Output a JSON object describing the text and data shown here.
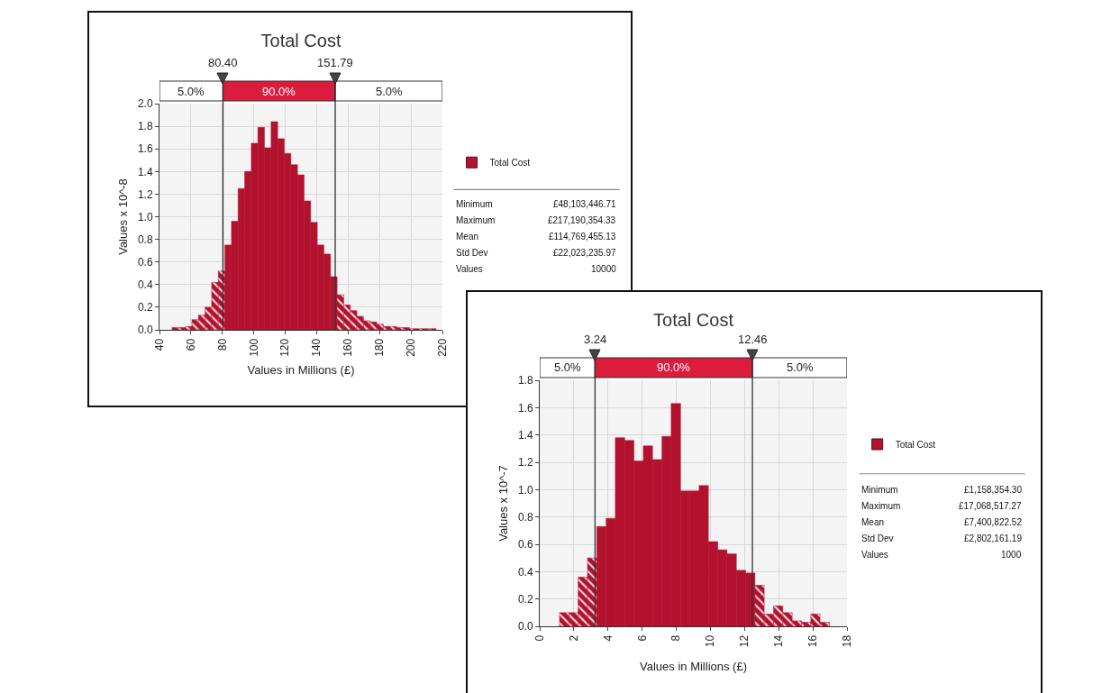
{
  "chart_data": [
    {
      "type": "histogram",
      "title": "Total Cost",
      "xlabel": "Values in Millions (£)",
      "ylabel": "Values x 10^-8",
      "series": [
        {
          "name": "Total Cost",
          "color": "#b3122e",
          "values": [
            0.02,
            0.02,
            0.03,
            0.09,
            0.13,
            0.2,
            0.42,
            0.52,
            0.75,
            0.96,
            1.25,
            1.4,
            1.65,
            1.79,
            1.61,
            1.84,
            1.69,
            1.56,
            1.46,
            1.37,
            1.14,
            0.95,
            0.75,
            0.67,
            0.47,
            0.31,
            0.22,
            0.17,
            0.12,
            0.08,
            0.07,
            0.05,
            0.03,
            0.03,
            0.02,
            0.02,
            0.01,
            0.01,
            0.01,
            0.01
          ]
        }
      ],
      "bins": [
        48,
        52.2,
        56.4,
        60.6,
        64.8,
        69,
        73.2,
        77.4,
        81.6,
        85.8,
        90,
        94.2,
        98.4,
        102.6,
        106.8,
        111,
        115.2,
        119.4,
        123.6,
        127.8,
        132,
        136.2,
        140.4,
        144.6,
        148.8,
        153,
        157.2,
        161.4,
        165.6,
        169.8,
        174,
        178.2,
        182.4,
        186.6,
        190.8,
        195,
        199.2,
        203.4,
        207.6,
        211.8,
        216
      ],
      "xlim": [
        40,
        220
      ],
      "xticks": [
        40,
        60,
        80,
        100,
        120,
        140,
        160,
        180,
        200,
        220
      ],
      "ylim": [
        0,
        2.0
      ],
      "yticks": [
        {
          "value": 0,
          "label": "0.0"
        },
        {
          "value": 0.2,
          "label": "0.2"
        },
        {
          "value": 0.4,
          "label": "0.4"
        },
        {
          "value": 0.6,
          "label": "0.6"
        },
        {
          "value": 0.8,
          "label": "0.8"
        },
        {
          "value": 1,
          "label": "1.0"
        },
        {
          "value": 1.2,
          "label": "1.2"
        },
        {
          "value": 1.4,
          "label": "1.4"
        },
        {
          "value": 1.6,
          "label": "1.6"
        },
        {
          "value": 1.8,
          "label": "1.8"
        },
        {
          "value": 2,
          "label": "2.0"
        }
      ],
      "ref_lines": [
        {
          "axis": "x",
          "value": 80.4,
          "label": "80.40",
          "color": "#333333"
        },
        {
          "axis": "x",
          "value": 151.79,
          "label": "151.79",
          "color": "#333333"
        }
      ],
      "annotations": [
        "5.0%",
        "90.0%",
        "5.0%",
        "Minimum",
        "£48,103,446.71",
        "Maximum",
        "£217,190,354.33",
        "Mean",
        "£114,769,455.13",
        "Std Dev",
        "£22,023,235.97",
        "Values",
        "10000"
      ],
      "grid": true,
      "legend": "right"
    },
    {
      "type": "histogram",
      "title": "Total Cost",
      "xlabel": "Values in Millions (£)",
      "ylabel": "Values x 10^-7",
      "series": [
        {
          "name": "Total Cost",
          "color": "#b3122e",
          "values": [
            0.1,
            0.1,
            0.36,
            0.5,
            0.73,
            0.79,
            1.38,
            1.36,
            1.21,
            1.32,
            1.22,
            1.39,
            1.63,
            0.99,
            0.99,
            1.03,
            0.62,
            0.56,
            0.53,
            0.41,
            0.39,
            0.3,
            0.09,
            0.15,
            0.1,
            0.04,
            0.03,
            0.09,
            0.03
          ]
        }
      ],
      "bins": [
        1.16,
        1.71,
        2.25,
        2.8,
        3.34,
        3.89,
        4.43,
        4.98,
        5.52,
        6.07,
        6.61,
        7.16,
        7.7,
        8.25,
        8.79,
        9.34,
        9.88,
        10.43,
        10.97,
        11.52,
        12.06,
        12.61,
        13.15,
        13.7,
        14.24,
        14.79,
        15.33,
        15.88,
        16.42,
        16.97
      ],
      "xlim": [
        0,
        18
      ],
      "xticks": [
        0,
        2,
        4,
        6,
        8,
        10,
        12,
        14,
        16,
        18
      ],
      "ylim": [
        0,
        1.8
      ],
      "yticks": [
        {
          "value": 0,
          "label": "0.0"
        },
        {
          "value": 0.2,
          "label": "0.2"
        },
        {
          "value": 0.4,
          "label": "0.4"
        },
        {
          "value": 0.6,
          "label": "0.6"
        },
        {
          "value": 0.8,
          "label": "0.8"
        },
        {
          "value": 1,
          "label": "1.0"
        },
        {
          "value": 1.2,
          "label": "1.2"
        },
        {
          "value": 1.4,
          "label": "1.4"
        },
        {
          "value": 1.6,
          "label": "1.6"
        },
        {
          "value": 1.8,
          "label": "1.8"
        }
      ],
      "ref_lines": [
        {
          "axis": "x",
          "value": 3.24,
          "label": "3.24",
          "color": "#333333"
        },
        {
          "axis": "x",
          "value": 12.46,
          "label": "12.46",
          "color": "#333333"
        }
      ],
      "annotations": [
        "5.0%",
        "90.0%",
        "5.0%",
        "Minimum",
        "£1,158,354.30",
        "Maximum",
        "£17,068,517.27",
        "Mean",
        "£7,400,822.52",
        "Std Dev",
        "£2,802,161.19",
        "Values",
        "1000"
      ],
      "grid": true,
      "legend": "right"
    }
  ]
}
